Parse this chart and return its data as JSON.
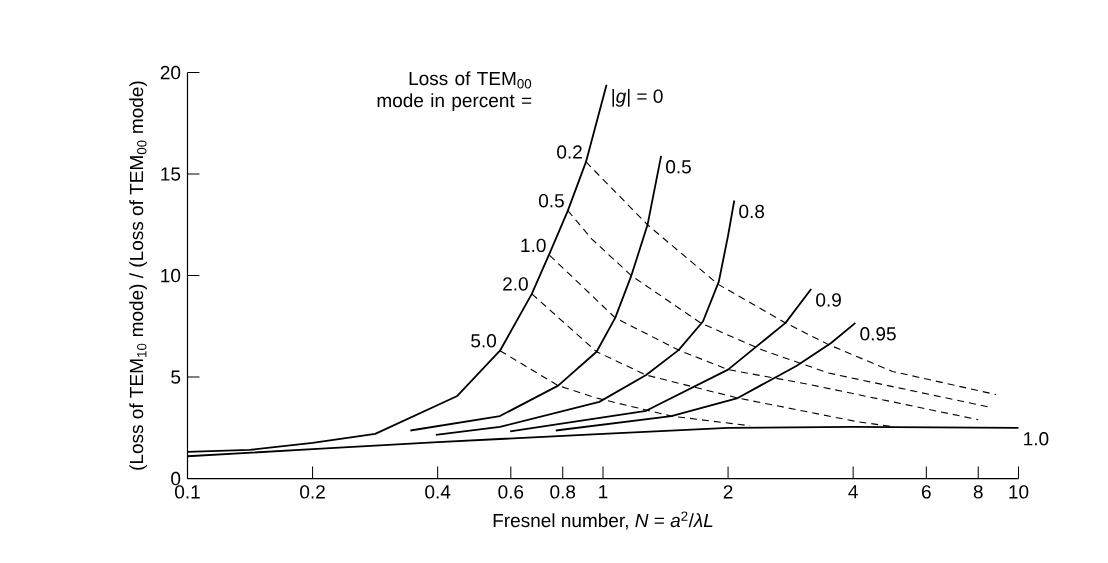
{
  "chart_data": {
    "type": "line",
    "xlabel": "Fresnel number, *N* = *a*$^{2}$/*λL*",
    "ylabel": "(Loss of TEM$_{10}$ mode) / (Loss of TEM$_{00}$ mode)",
    "annotations": [
      "Loss of TEM$_{00}$ mode in percent ="
    ],
    "log": "x",
    "xlim": [
      0.1,
      10
    ],
    "ylim": [
      0,
      20
    ],
    "xticks": [
      0.1,
      0.2,
      0.4,
      0.6,
      0.8,
      1,
      2,
      4,
      6,
      8,
      10
    ],
    "yticks": [
      0,
      5,
      10,
      15,
      20
    ],
    "series": [
      {
        "name": "|*g*| = 0",
        "color": "#000000",
        "line_style": "solid",
        "x": [
          0.1,
          0.141,
          0.2,
          0.283,
          0.446,
          0.565,
          0.674,
          0.744,
          0.823,
          0.91,
          1.02
        ],
        "values": [
          1.32,
          1.41,
          1.76,
          2.2,
          4.07,
          6.3,
          9.1,
          11.1,
          13.2,
          15.6,
          19.4
        ]
      },
      {
        "name": "0.5",
        "color": "#000000",
        "line_style": "solid",
        "x": [
          0.344,
          0.565,
          0.78,
          0.965,
          1.07,
          1.17,
          1.28,
          1.38
        ],
        "values": [
          2.37,
          3.08,
          4.58,
          6.25,
          7.92,
          10.0,
          12.5,
          15.9
        ]
      },
      {
        "name": "0.8",
        "color": "#000000",
        "line_style": "solid",
        "x": [
          0.396,
          0.565,
          0.98,
          1.27,
          1.52,
          1.74,
          1.9,
          2.0,
          2.07
        ],
        "values": [
          2.15,
          2.55,
          3.78,
          5.1,
          6.33,
          7.74,
          9.7,
          11.97,
          13.7
        ]
      },
      {
        "name": "0.9",
        "color": "#000000",
        "line_style": "solid",
        "x": [
          0.598,
          1.27,
          2.0,
          2.75,
          3.17
        ],
        "values": [
          2.33,
          3.34,
          5.37,
          7.67,
          9.34
        ]
      },
      {
        "name": "0.95",
        "color": "#000000",
        "line_style": "solid",
        "x": [
          0.77,
          1.46,
          2.11,
          2.92,
          3.54,
          4.05
        ],
        "values": [
          2.37,
          3.08,
          3.97,
          5.55,
          6.68,
          7.67
        ]
      },
      {
        "name": "1.0",
        "color": "#000000",
        "line_style": "solid",
        "x": [
          0.1,
          0.2,
          0.4,
          0.565,
          1,
          2,
          4,
          10
        ],
        "values": [
          1.1,
          1.45,
          1.8,
          1.95,
          2.2,
          2.5,
          2.55,
          2.5
        ]
      },
      {
        "name": "0.2",
        "color": "#000000",
        "line_style": "dashed",
        "x": [
          0.91,
          1.28,
          1.89,
          2.75,
          3.49,
          4.97,
          8.83
        ],
        "values": [
          15.6,
          12.5,
          9.58,
          7.67,
          6.6,
          5.28,
          4.14
        ]
      },
      {
        "name": "0.5",
        "color": "#000000",
        "line_style": "dashed",
        "x": [
          0.823,
          0.94,
          1.17,
          1.72,
          2.42,
          3.49,
          8.47
        ],
        "values": [
          13.2,
          11.8,
          10.0,
          7.66,
          6.33,
          5.2,
          3.53
        ]
      },
      {
        "name": "1.0",
        "color": "#000000",
        "line_style": "dashed",
        "x": [
          0.744,
          1.07,
          1.52,
          2.0,
          3.1,
          8.0
        ],
        "values": [
          11.0,
          7.92,
          6.33,
          5.37,
          4.66,
          2.9
        ]
      },
      {
        "name": "2.0",
        "color": "#000000",
        "line_style": "dashed",
        "x": [
          0.674,
          0.965,
          1.27,
          2.11,
          4.05,
          5.0
        ],
        "values": [
          9.1,
          6.25,
          5.1,
          3.97,
          2.82,
          2.55
        ]
      },
      {
        "name": "5.0",
        "color": "#000000",
        "line_style": "dashed",
        "x": [
          0.565,
          0.78,
          0.965,
          1.46,
          2.26
        ],
        "values": [
          6.3,
          4.58,
          3.97,
          3.08,
          2.6
        ]
      }
    ]
  }
}
